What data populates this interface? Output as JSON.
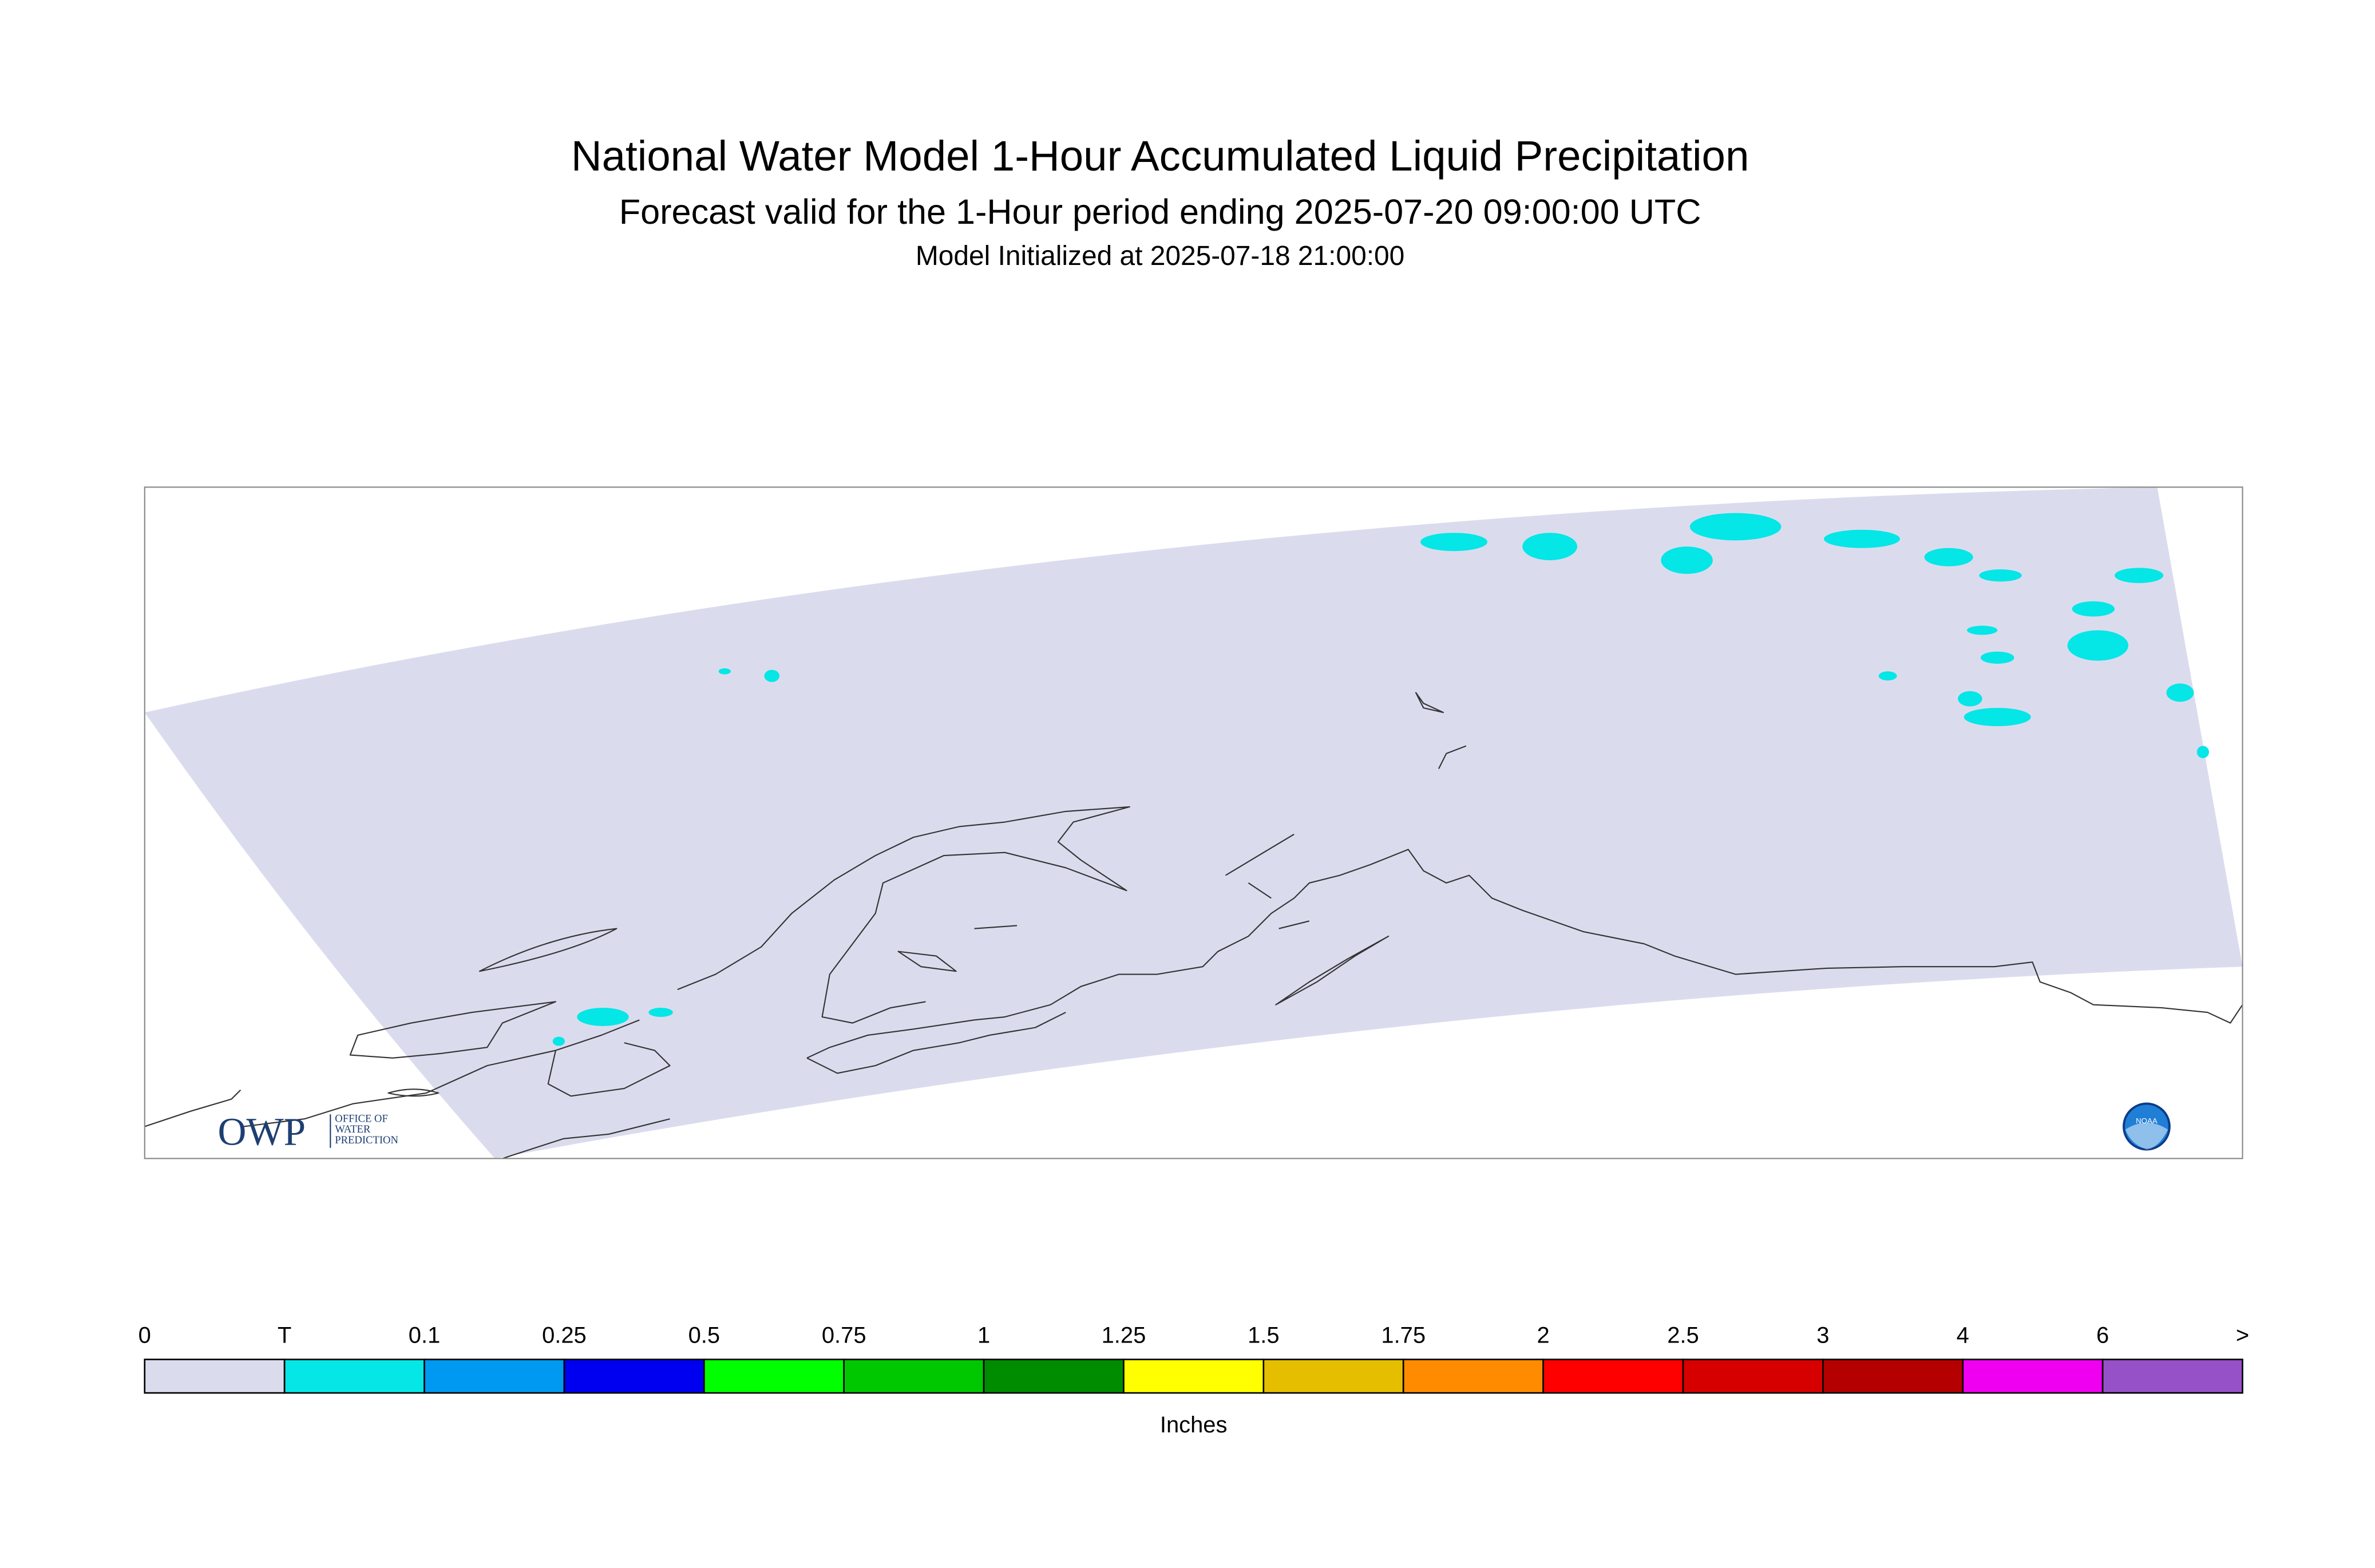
{
  "title": "National Water Model 1-Hour Accumulated Liquid Precipitation",
  "subtitle": "Forecast valid for the 1-Hour period ending 2025-07-20 09:00:00 UTC",
  "initialized": "Model Initialized at 2025-07-18 21:00:00",
  "legend": {
    "labels": [
      "0",
      "T",
      "0.1",
      "0.25",
      "0.5",
      "0.75",
      "1",
      "1.25",
      "1.5",
      "1.75",
      "2",
      "2.5",
      "3",
      "4",
      "6",
      ">"
    ],
    "colors": [
      "#dadcee",
      "#05e6e6",
      "#0099f2",
      "#0000f0",
      "#00ff00",
      "#00c800",
      "#008c00",
      "#ffff00",
      "#e6be00",
      "#ff8c00",
      "#ff0000",
      "#d70000",
      "#b40000",
      "#f000f0",
      "#9650c8"
    ],
    "unit": "Inches"
  },
  "logos": {
    "owp": "OWP",
    "owp_lines": [
      "OFFICE OF",
      "WATER",
      "PREDICTION"
    ],
    "noaa": "NOAA"
  }
}
